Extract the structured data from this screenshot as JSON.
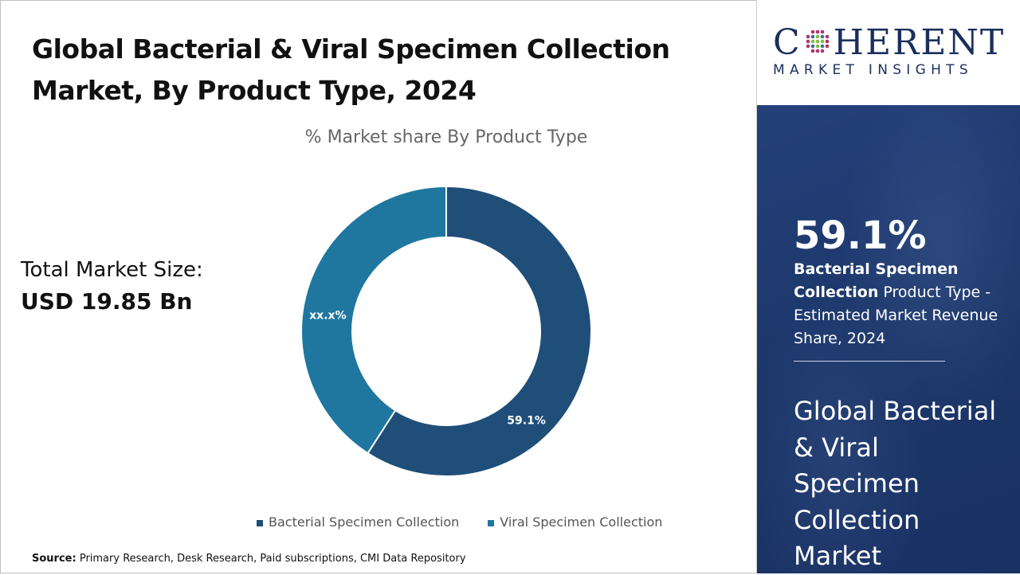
{
  "header": {
    "title": "Global Bacterial & Viral Specimen Collection Market, By Product Type, 2024"
  },
  "total_market": {
    "label": "Total Market Size:",
    "value": "USD 19.85 Bn"
  },
  "chart_data": {
    "type": "pie",
    "donut": true,
    "title": "% Market share By Product Type",
    "categories": [
      "Bacterial Specimen Collection",
      "Viral Specimen Collection"
    ],
    "values": [
      59.1,
      40.9
    ],
    "data_labels": [
      "59.1%",
      "xx.x%"
    ],
    "colors": [
      "#1f4e79",
      "#1f77a0"
    ],
    "legend_position": "bottom"
  },
  "source": {
    "label": "Source:",
    "text": "Primary Research, Desk Research, Paid subscriptions, CMI Data Repository"
  },
  "brand": {
    "name_left": "C",
    "name_right": "HERENT",
    "tagline": "MARKET INSIGHTS",
    "color": "#1b2f5e"
  },
  "sidebar": {
    "stat": "59.1%",
    "desc_bold": "Bacterial Specimen Collection",
    "desc_rest": " Product Type - Estimated Market Revenue Share, 2024",
    "market_title": "Global Bacterial & Viral Specimen Collection Market",
    "panel_color": "#1e3a6c"
  }
}
